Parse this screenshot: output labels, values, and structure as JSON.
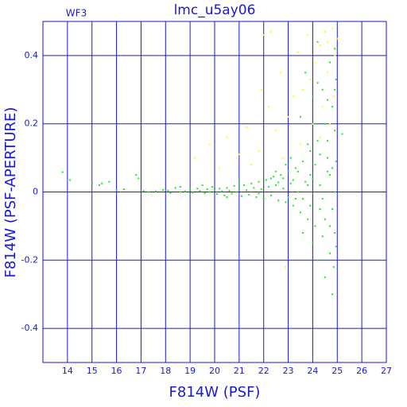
{
  "chart_data": {
    "type": "scatter",
    "title": "lmc_u5ay06",
    "annotation": "WF3",
    "x_label": "F814W (PSF)",
    "y_label": "F814W (PSF-APERTURE)",
    "xlim": [
      13,
      27
    ],
    "ylim": [
      -0.5,
      0.5
    ],
    "xticks": [
      14,
      15,
      16,
      17,
      18,
      19,
      20,
      21,
      22,
      23,
      24,
      25,
      26,
      27
    ],
    "yticks": [
      -0.4,
      -0.2,
      0,
      0.2,
      0.4
    ],
    "grid": true,
    "series": [
      {
        "color": "#ffff00",
        "x": [
          19.2,
          19.8,
          20.5,
          21.0,
          21.3,
          21.8,
          21.9,
          22.0,
          22.2,
          22.3,
          22.5,
          22.7,
          22.8,
          23.0,
          23.2,
          23.4,
          23.5,
          23.6,
          23.8,
          24.0,
          24.1,
          24.3,
          24.4,
          24.5,
          24.6,
          24.7,
          24.8,
          24.9,
          25.0,
          24.6,
          22.9,
          24.3,
          23.9,
          21.5,
          20.2,
          24.85
        ],
        "y": [
          0.1,
          0.14,
          0.16,
          0.11,
          0.19,
          0.12,
          0.3,
          0.46,
          0.25,
          0.47,
          0.18,
          0.35,
          0.1,
          0.22,
          0.28,
          0.41,
          0.14,
          0.3,
          0.46,
          0.2,
          0.38,
          0.43,
          0.25,
          0.47,
          0.35,
          0.2,
          0.48,
          0.4,
          0.45,
          0.44,
          -0.22,
          0.16,
          0.33,
          0.08,
          0.07,
          0.28
        ]
      },
      {
        "color": "#22e622",
        "x": [
          13.8,
          14.1,
          15.0,
          15.3,
          15.4,
          15.7,
          16.0,
          16.3,
          16.8,
          16.9,
          17.1,
          17.3,
          17.6,
          17.9,
          18.1,
          18.2,
          18.4,
          18.6,
          18.8,
          19.0,
          19.1,
          19.3,
          19.4,
          19.6,
          19.7,
          19.8,
          19.9,
          20.0,
          20.1,
          20.2,
          20.3,
          20.4,
          20.5,
          20.6,
          20.7,
          20.8,
          20.9,
          21.0,
          21.1,
          21.2,
          21.3,
          21.4,
          21.5,
          21.6,
          21.7,
          21.8,
          21.9,
          22.0,
          22.1,
          22.2,
          22.3,
          22.4,
          22.5,
          22.6,
          22.7,
          22.8,
          22.9,
          23.0,
          23.1,
          23.2,
          23.3,
          23.4,
          23.5,
          23.6,
          23.7,
          23.8,
          23.9,
          24.0,
          24.1,
          24.2,
          24.3,
          24.4,
          24.5,
          24.6,
          24.7,
          24.8,
          24.9,
          24.95,
          24.85,
          24.6,
          24.4,
          24.3,
          24.1,
          23.9,
          23.8,
          23.6,
          23.4,
          23.2,
          23.0,
          22.8,
          22.6,
          24.7,
          24.9,
          24.5,
          24.8,
          24.2,
          25.2,
          23.7,
          24.2,
          24.0,
          23.5,
          24.6,
          24.9,
          24.8,
          24.5,
          24.3,
          23.9,
          23.3,
          22.9,
          22.3,
          21.8,
          21.0,
          20.5,
          19.5,
          19.0,
          18.6,
          24.9,
          24.7,
          24.4,
          24.1,
          23.8,
          24.6,
          24.8,
          24.95,
          24.95,
          23.1,
          22.5,
          23.6,
          24.0,
          24.2,
          24.7,
          24.9
        ],
        "y": [
          0.058,
          0.035,
          0.028,
          0.02,
          0.025,
          0.03,
          0.005,
          0.008,
          0.05,
          0.04,
          0.003,
          0.0,
          0.002,
          0.006,
          0.004,
          -0.003,
          0.012,
          0.0,
          0.002,
          0.007,
          -0.002,
          0.01,
          0.003,
          -0.004,
          0.008,
          0.0,
          0.015,
          0.005,
          -0.006,
          0.01,
          0.002,
          -0.01,
          0.012,
          0.004,
          -0.005,
          0.018,
          0.0,
          0.01,
          -0.012,
          0.02,
          0.005,
          -0.008,
          0.025,
          0.012,
          -0.015,
          0.03,
          0.008,
          -0.02,
          0.035,
          0.015,
          -0.01,
          0.045,
          0.02,
          -0.025,
          0.05,
          0.01,
          -0.03,
          0.06,
          0.025,
          -0.04,
          0.07,
          0.0,
          -0.06,
          0.09,
          0.03,
          -0.08,
          0.12,
          0.04,
          -0.1,
          0.15,
          0.02,
          -0.13,
          0.2,
          0.06,
          -0.18,
          0.25,
          0.0,
          0.33,
          -0.22,
          0.1,
          0.3,
          -0.05,
          0.08,
          0.05,
          0.02,
          -0.02,
          0.06,
          0.035,
          -0.015,
          0.04,
          0.028,
          0.38,
          0.42,
          -0.25,
          -0.3,
          -0.2,
          0.17,
          0.35,
          0.44,
          0.28,
          0.22,
          0.15,
          0.18,
          0.07,
          -0.08,
          0.11,
          -0.04,
          -0.02,
          0.08,
          0.04,
          -0.005,
          0.03,
          -0.015,
          0.02,
          -0.008,
          0.015,
          -0.12,
          0.05,
          -0.02,
          0.2,
          0.14,
          0.27,
          -0.05,
          0.09,
          -0.16,
          0.1,
          0.06,
          -0.12,
          -0.15,
          0.32,
          -0.1,
          0.3
        ]
      }
    ]
  }
}
